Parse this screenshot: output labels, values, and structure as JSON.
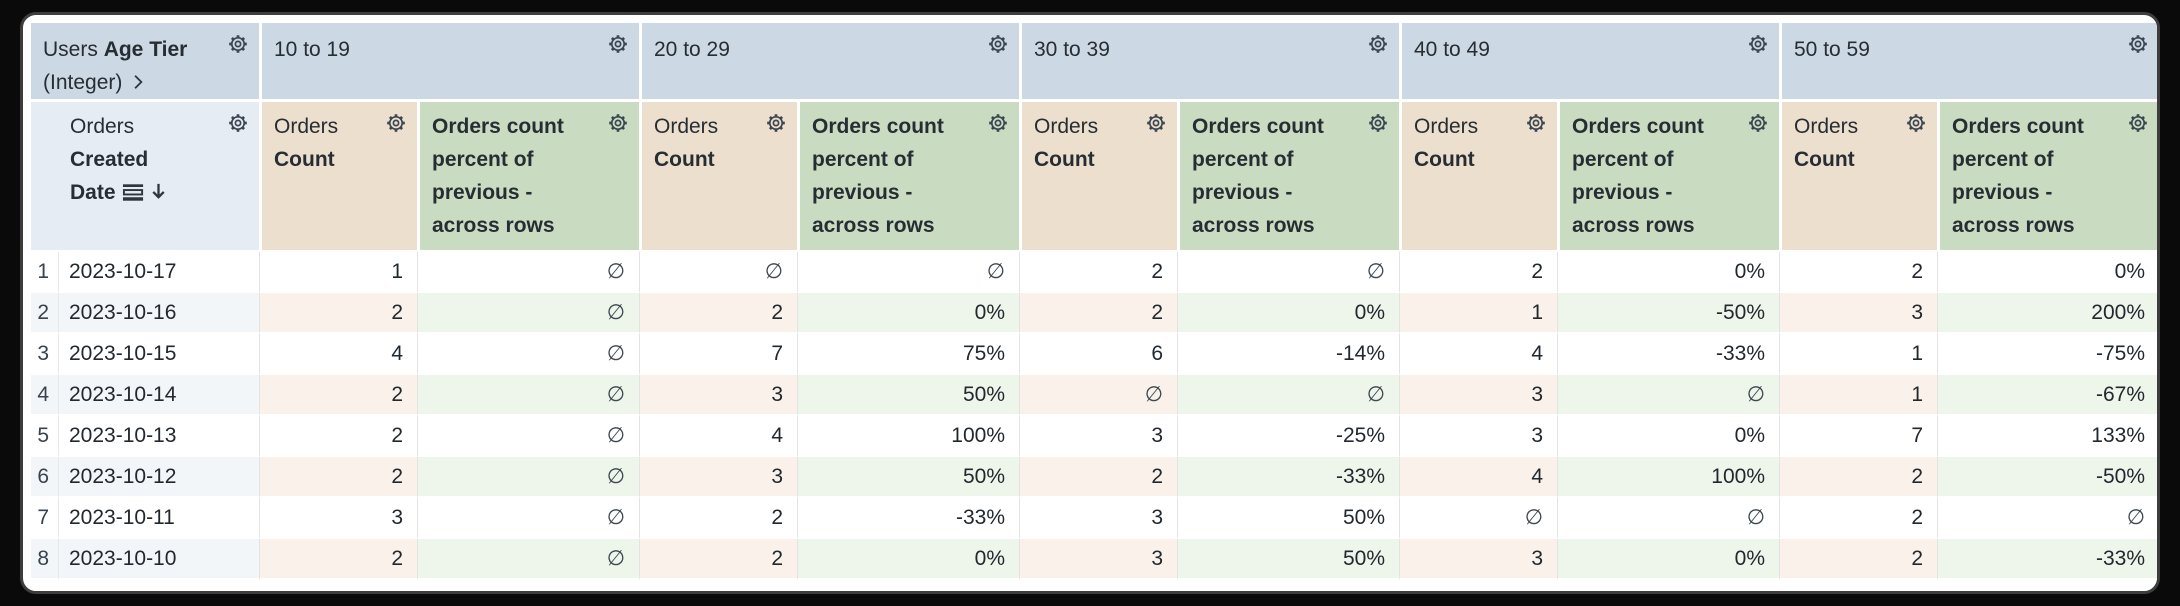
{
  "pivot": {
    "field": {
      "view": "Users",
      "name": "Age Tier",
      "suffix": "(Integer)"
    },
    "groups": [
      "10 to 19",
      "20 to 29",
      "30 to 39",
      "40 to 49",
      "50 to 59"
    ]
  },
  "row_field": {
    "view": "Orders",
    "name": "Created Date",
    "sort": "descending"
  },
  "measures": {
    "count": {
      "view": "Orders",
      "name": "Count"
    },
    "percent": {
      "name": "Orders count percent of previous - across rows"
    }
  },
  "null_symbol": "∅",
  "rows": [
    {
      "index": "1",
      "date": "2023-10-17",
      "values": [
        [
          "1",
          "∅"
        ],
        [
          "∅",
          "∅"
        ],
        [
          "2",
          "∅"
        ],
        [
          "2",
          "0%"
        ],
        [
          "2",
          "0%"
        ]
      ]
    },
    {
      "index": "2",
      "date": "2023-10-16",
      "values": [
        [
          "2",
          "∅"
        ],
        [
          "2",
          "0%"
        ],
        [
          "2",
          "0%"
        ],
        [
          "1",
          "-50%"
        ],
        [
          "3",
          "200%"
        ]
      ]
    },
    {
      "index": "3",
      "date": "2023-10-15",
      "values": [
        [
          "4",
          "∅"
        ],
        [
          "7",
          "75%"
        ],
        [
          "6",
          "-14%"
        ],
        [
          "4",
          "-33%"
        ],
        [
          "1",
          "-75%"
        ]
      ]
    },
    {
      "index": "4",
      "date": "2023-10-14",
      "values": [
        [
          "2",
          "∅"
        ],
        [
          "3",
          "50%"
        ],
        [
          "∅",
          "∅"
        ],
        [
          "3",
          "∅"
        ],
        [
          "1",
          "-67%"
        ]
      ]
    },
    {
      "index": "5",
      "date": "2023-10-13",
      "values": [
        [
          "2",
          "∅"
        ],
        [
          "4",
          "100%"
        ],
        [
          "3",
          "-25%"
        ],
        [
          "3",
          "0%"
        ],
        [
          "7",
          "133%"
        ]
      ]
    },
    {
      "index": "6",
      "date": "2023-10-12",
      "values": [
        [
          "2",
          "∅"
        ],
        [
          "3",
          "50%"
        ],
        [
          "2",
          "-33%"
        ],
        [
          "4",
          "100%"
        ],
        [
          "2",
          "-50%"
        ]
      ]
    },
    {
      "index": "7",
      "date": "2023-10-11",
      "values": [
        [
          "3",
          "∅"
        ],
        [
          "2",
          "-33%"
        ],
        [
          "3",
          "50%"
        ],
        [
          "∅",
          "∅"
        ],
        [
          "2",
          "∅"
        ]
      ]
    },
    {
      "index": "8",
      "date": "2023-10-10",
      "values": [
        [
          "2",
          "∅"
        ],
        [
          "2",
          "0%"
        ],
        [
          "3",
          "50%"
        ],
        [
          "3",
          "0%"
        ],
        [
          "2",
          "-33%"
        ]
      ]
    }
  ],
  "colors": {
    "pivot_header": "#ccd8e4",
    "row_label_header": "#e6ecf4",
    "count_header": "#ecdfce",
    "percent_header": "#c9dcc1",
    "stripe_label": "#f3f6f9",
    "stripe_count": "#f9f1ea",
    "stripe_percent": "#eef5eb"
  }
}
